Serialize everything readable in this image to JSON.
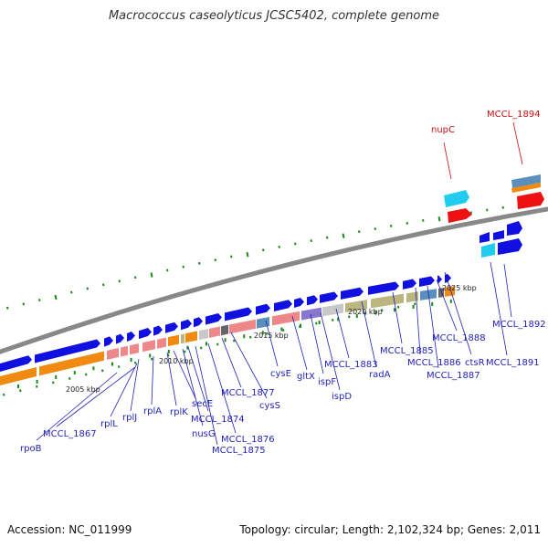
{
  "title": "Macrococcus caseolyticus JCSC5402, complete genome",
  "footer": {
    "accession": "Accession: NC_011999",
    "topology": "Topology: circular; Length: 2,102,324 bp; Genes: 2,011"
  },
  "colors": {
    "blue_gene": "#1010e0",
    "cyan_gene": "#22ccee",
    "red_gene": "#ee1111",
    "orange_feature": "#f08a10",
    "salmon_feature": "#ee8888",
    "lavender_feature": "#8877cc",
    "khaki_feature": "#bbb580",
    "steelblue_feature": "#5a8fbb",
    "grey_feature": "#c8c8c8",
    "genome_line": "#888888",
    "dot_green": "#1a8a1a",
    "label_blue": "#1f1fb8",
    "label_red": "#cc1010"
  },
  "scale_labels": [
    "2005 kbp",
    "2010 kbp",
    "2015 kbp",
    "2020 kbp",
    "2025 kbp"
  ],
  "gene_labels": [
    {
      "text": "rpoB",
      "color": "blue"
    },
    {
      "text": "MCCL_1867",
      "color": "blue"
    },
    {
      "text": "rplL",
      "color": "blue"
    },
    {
      "text": "rplJ",
      "color": "blue"
    },
    {
      "text": "rplA",
      "color": "blue"
    },
    {
      "text": "rplK",
      "color": "blue"
    },
    {
      "text": "secE",
      "color": "blue"
    },
    {
      "text": "nusG",
      "color": "blue"
    },
    {
      "text": "MCCL_1874",
      "color": "blue"
    },
    {
      "text": "MCCL_1875",
      "color": "blue"
    },
    {
      "text": "MCCL_1876",
      "color": "blue"
    },
    {
      "text": "MCCL_1877",
      "color": "blue"
    },
    {
      "text": "cysS",
      "color": "blue"
    },
    {
      "text": "cysE",
      "color": "blue"
    },
    {
      "text": "gltX",
      "color": "blue"
    },
    {
      "text": "ispF",
      "color": "blue"
    },
    {
      "text": "ispD",
      "color": "blue"
    },
    {
      "text": "MCCL_1883",
      "color": "blue"
    },
    {
      "text": "radA",
      "color": "blue"
    },
    {
      "text": "MCCL_1885",
      "color": "blue"
    },
    {
      "text": "MCCL_1886",
      "color": "blue"
    },
    {
      "text": "MCCL_1887",
      "color": "blue"
    },
    {
      "text": "MCCL_1888",
      "color": "blue"
    },
    {
      "text": "ctsR",
      "color": "blue"
    },
    {
      "text": "MCCL_1891",
      "color": "blue"
    },
    {
      "text": "MCCL_1892",
      "color": "blue"
    },
    {
      "text": "nupC",
      "color": "red"
    },
    {
      "text": "MCCL_1894",
      "color": "red"
    }
  ]
}
